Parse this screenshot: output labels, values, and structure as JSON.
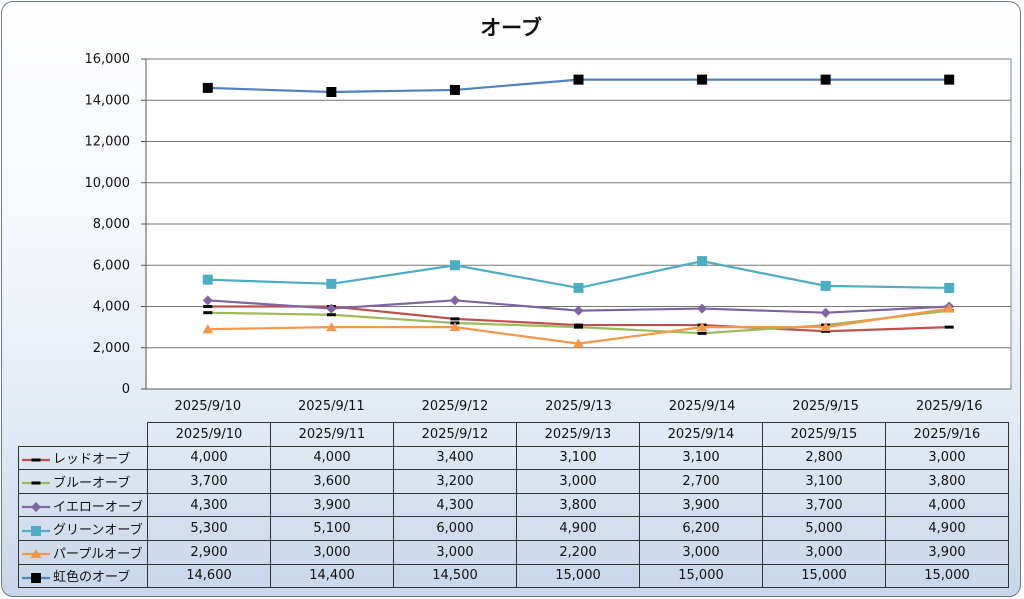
{
  "chart_data": {
    "type": "line",
    "title": "オーブ",
    "xlabel": "",
    "ylabel": "",
    "ylim": [
      0,
      16000
    ],
    "yticks": [
      0,
      2000,
      4000,
      6000,
      8000,
      10000,
      12000,
      14000,
      16000
    ],
    "ytick_labels": [
      "0",
      "2,000",
      "4,000",
      "6,000",
      "8,000",
      "10,000",
      "12,000",
      "14,000",
      "16,000"
    ],
    "categories": [
      "2025/9/10",
      "2025/9/11",
      "2025/9/12",
      "2025/9/13",
      "2025/9/14",
      "2025/9/15",
      "2025/9/16"
    ],
    "grid": true,
    "legend": "data-table",
    "series": [
      {
        "name": "レッドオーブ",
        "color": "#c0504d",
        "marker": "dash",
        "values": [
          4000,
          4000,
          3400,
          3100,
          3100,
          2800,
          3000
        ],
        "labels": [
          "4,000",
          "4,000",
          "3,400",
          "3,100",
          "3,100",
          "2,800",
          "3,000"
        ]
      },
      {
        "name": "ブルーオーブ",
        "color": "#9bbb59",
        "marker": "dash",
        "values": [
          3700,
          3600,
          3200,
          3000,
          2700,
          3100,
          3800
        ],
        "labels": [
          "3,700",
          "3,600",
          "3,200",
          "3,000",
          "2,700",
          "3,100",
          "3,800"
        ]
      },
      {
        "name": "イエローオーブ",
        "color": "#8064a2",
        "marker": "diamond",
        "values": [
          4300,
          3900,
          4300,
          3800,
          3900,
          3700,
          4000
        ],
        "labels": [
          "4,300",
          "3,900",
          "4,300",
          "3,800",
          "3,900",
          "3,700",
          "4,000"
        ]
      },
      {
        "name": "グリーンオーブ",
        "color": "#4bacc6",
        "marker": "square",
        "values": [
          5300,
          5100,
          6000,
          4900,
          6200,
          5000,
          4900
        ],
        "labels": [
          "5,300",
          "5,100",
          "6,000",
          "4,900",
          "6,200",
          "5,000",
          "4,900"
        ]
      },
      {
        "name": "パープルオーブ",
        "color": "#f79646",
        "marker": "triangle",
        "values": [
          2900,
          3000,
          3000,
          2200,
          3000,
          3000,
          3900
        ],
        "labels": [
          "2,900",
          "3,000",
          "3,000",
          "2,200",
          "3,000",
          "3,000",
          "3,900"
        ]
      },
      {
        "name": "虹色のオーブ",
        "color": "#4f81bd",
        "marker": "black-square",
        "values": [
          14600,
          14400,
          14500,
          15000,
          15000,
          15000,
          15000
        ],
        "labels": [
          "14,600",
          "14,400",
          "14,500",
          "15,000",
          "15,000",
          "15,000",
          "15,000"
        ]
      }
    ]
  }
}
